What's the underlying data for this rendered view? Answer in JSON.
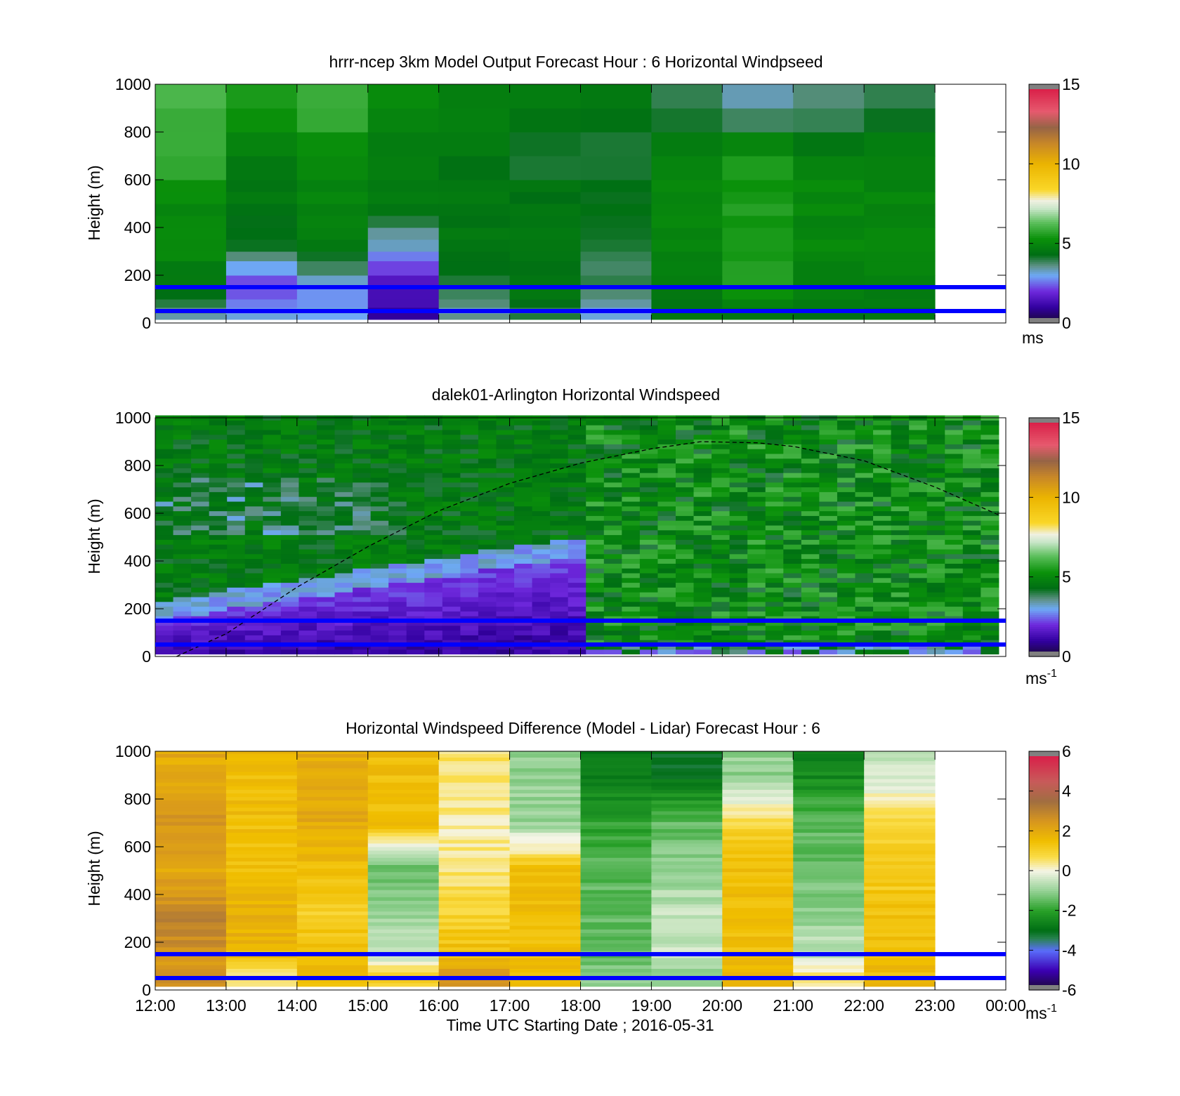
{
  "figure": {
    "xlabel": "Time UTC  Starting Date ; 2016-05-31",
    "x_ticks": [
      "12:00",
      "13:00",
      "14:00",
      "15:00",
      "16:00",
      "17:00",
      "18:00",
      "19:00",
      "20:00",
      "21:00",
      "22:00",
      "23:00",
      "00:00"
    ],
    "y_ticks": [
      "0",
      "200",
      "400",
      "600",
      "800",
      "1000"
    ],
    "ylabel": "Height (m)",
    "reference_lines_m": [
      50,
      150
    ],
    "reference_line_color": "#0000ff"
  },
  "chart_data": [
    {
      "type": "heatmap",
      "title": "hrrr-ncep 3km Model Output   Forecast Hour : 6 Horizontal Windpseed",
      "ylabel": "Height (m)",
      "ylim": [
        0,
        1000
      ],
      "xlim_hours_utc": [
        12,
        24
      ],
      "data_extent_hours_utc": [
        12,
        23
      ],
      "colorbar": {
        "ticks": [
          "0",
          "5",
          "10",
          "15"
        ],
        "range": [
          0,
          15
        ],
        "unit": "ms",
        "unit_sup": ""
      },
      "approx_windspeed_by_hour": {
        "hours": [
          "12:00",
          "13:00",
          "14:00",
          "15:00",
          "16:00",
          "17:00",
          "18:00",
          "19:00",
          "20:00",
          "21:00",
          "22:00"
        ],
        "heights_m": [
          50,
          150,
          300,
          500,
          700,
          900
        ],
        "values": [
          [
            3.5,
            3.0,
            3.0,
            1.0,
            3.5,
            4.0,
            3.0,
            4.5,
            4.5,
            4.5,
            4.5
          ],
          [
            4.5,
            2.0,
            2.8,
            1.5,
            4.0,
            4.5,
            4.0,
            4.5,
            5.5,
            4.8,
            4.8
          ],
          [
            5.0,
            4.0,
            4.5,
            3.0,
            4.5,
            4.5,
            4.0,
            5.0,
            5.5,
            5.0,
            5.0
          ],
          [
            5.0,
            4.5,
            5.0,
            4.8,
            4.5,
            4.5,
            4.2,
            5.0,
            5.5,
            5.0,
            5.0
          ],
          [
            6.0,
            4.8,
            5.0,
            4.6,
            4.6,
            4.2,
            4.2,
            5.0,
            5.5,
            5.0,
            5.0
          ],
          [
            6.0,
            5.5,
            6.0,
            5.0,
            4.8,
            4.6,
            4.6,
            4.0,
            3.5,
            3.5,
            4.0
          ]
        ]
      },
      "reference_lines_m": [
        50,
        150
      ]
    },
    {
      "type": "heatmap",
      "title": "dalek01-Arlington  Horizontal Windspeed",
      "ylabel": "Height (m)",
      "ylim": [
        0,
        1000
      ],
      "xlim_hours_utc": [
        12,
        24
      ],
      "data_extent_hours_utc": [
        12,
        23.9
      ],
      "colorbar": {
        "ticks": [
          "0",
          "5",
          "10",
          "15"
        ],
        "range": [
          0,
          15
        ],
        "unit": "ms",
        "unit_sup": "-1"
      },
      "boundary_layer_curve": {
        "x_hours_utc": [
          12.3,
          13,
          14,
          15,
          16,
          17,
          18,
          19,
          19.7,
          20.5,
          21,
          22,
          23,
          24
        ],
        "height_m": [
          0,
          95,
          290,
          460,
          610,
          725,
          810,
          870,
          900,
          895,
          880,
          820,
          710,
          580
        ]
      },
      "reference_lines_m": [
        50,
        150
      ]
    },
    {
      "type": "heatmap",
      "title": "Horizontal Windspeed Difference (Model - Lidar) Forecast Hour : 6",
      "ylabel": "Height (m)",
      "xlabel": "Time UTC  Starting Date ; 2016-05-31",
      "ylim": [
        0,
        1000
      ],
      "xlim_hours_utc": [
        12,
        24
      ],
      "data_extent_hours_utc": [
        12,
        23
      ],
      "colorbar": {
        "ticks": [
          "-6",
          "-4",
          "-2",
          "0",
          "2",
          "4",
          "6"
        ],
        "range": [
          -6,
          6
        ],
        "unit": "ms",
        "unit_sup": "-1"
      },
      "approx_difference_by_hour": {
        "hours": [
          "12:00",
          "13:00",
          "14:00",
          "15:00",
          "16:00",
          "17:00",
          "18:00",
          "19:00",
          "20:00",
          "21:00",
          "22:00"
        ],
        "heights_m": [
          50,
          150,
          300,
          500,
          700,
          900
        ],
        "values": [
          [
            2.5,
            0.5,
            1.5,
            1.0,
            2.5,
            1.5,
            -1.0,
            -1.0,
            1.5,
            0.5,
            1.5
          ],
          [
            2.5,
            1.5,
            1.5,
            -0.5,
            1.5,
            1.5,
            -1.5,
            -0.5,
            1.5,
            -0.5,
            1.5
          ],
          [
            3.0,
            2.0,
            1.0,
            -1.0,
            1.0,
            1.5,
            -1.5,
            -0.5,
            1.5,
            -1.0,
            1.5
          ],
          [
            2.0,
            1.5,
            1.5,
            -1.5,
            0.5,
            1.5,
            -1.5,
            -1.0,
            1.5,
            -1.5,
            1.0
          ],
          [
            2.5,
            1.5,
            2.0,
            1.5,
            0.3,
            -1.0,
            -2.0,
            -1.5,
            0.8,
            -1.5,
            1.0
          ],
          [
            2.0,
            1.5,
            2.0,
            1.5,
            0.5,
            -1.0,
            -2.8,
            -3.0,
            -1.0,
            -2.5,
            -0.5
          ]
        ]
      },
      "reference_lines_m": [
        50,
        150
      ]
    }
  ]
}
